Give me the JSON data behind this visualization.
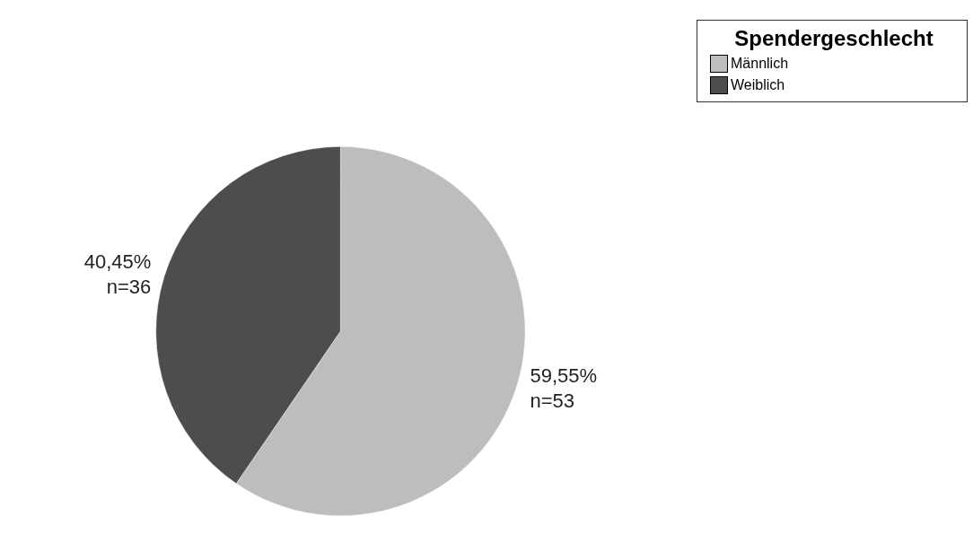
{
  "chart_data": {
    "type": "pie",
    "legend_title": "Spendergeschlecht",
    "legend": "top right",
    "categories": [
      "Männlich",
      "Weiblich"
    ],
    "values": [
      53,
      36
    ],
    "colors": [
      "#bdbdbd",
      "#4d4d4d"
    ],
    "value_labels": [
      "59,55%\nn=53",
      "40,45%\nn=36"
    ]
  }
}
